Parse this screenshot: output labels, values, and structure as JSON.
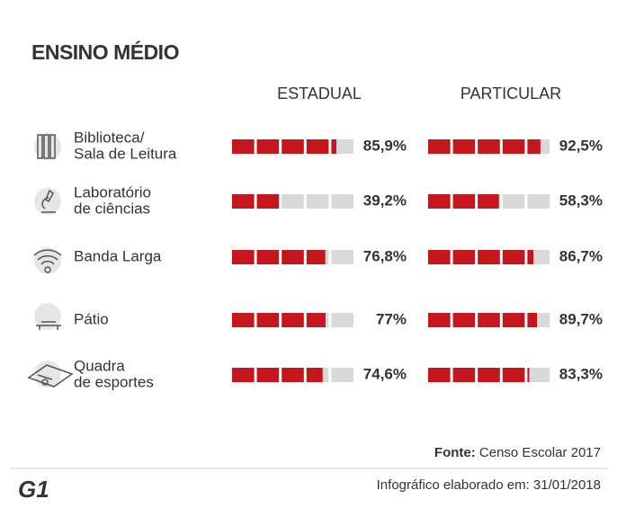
{
  "chart_data": {
    "type": "block-bar",
    "title": "ENSINO MÉDIO",
    "categories": [
      [
        "Biblioteca/",
        "Sala de Leitura"
      ],
      [
        "Laboratório",
        "de ciências"
      ],
      [
        "Banda Larga"
      ],
      [
        "Pátio"
      ],
      [
        "Quadra",
        "de esportes"
      ]
    ],
    "xlim": [
      0,
      100
    ],
    "series": [
      {
        "name": "ESTADUAL",
        "color": "#c4161c",
        "values": [
          85.9,
          39.2,
          76.8,
          77,
          74.6
        ],
        "value_labels": [
          "85,9%",
          "39,2%",
          "76,8%",
          "77%",
          "74,6%"
        ]
      },
      {
        "name": "PARTICULAR",
        "color": "#c4161c",
        "values": [
          92.5,
          58.3,
          86.7,
          89.7,
          83.3
        ],
        "value_labels": [
          "92,5%",
          "58,3%",
          "86,7%",
          "89,7%",
          "83,3%"
        ]
      }
    ],
    "source_label": "Fonte:",
    "source": "Censo Escolar 2017",
    "footer": "Infográfico elaborado em: 31/01/2018",
    "logo": "G1"
  }
}
